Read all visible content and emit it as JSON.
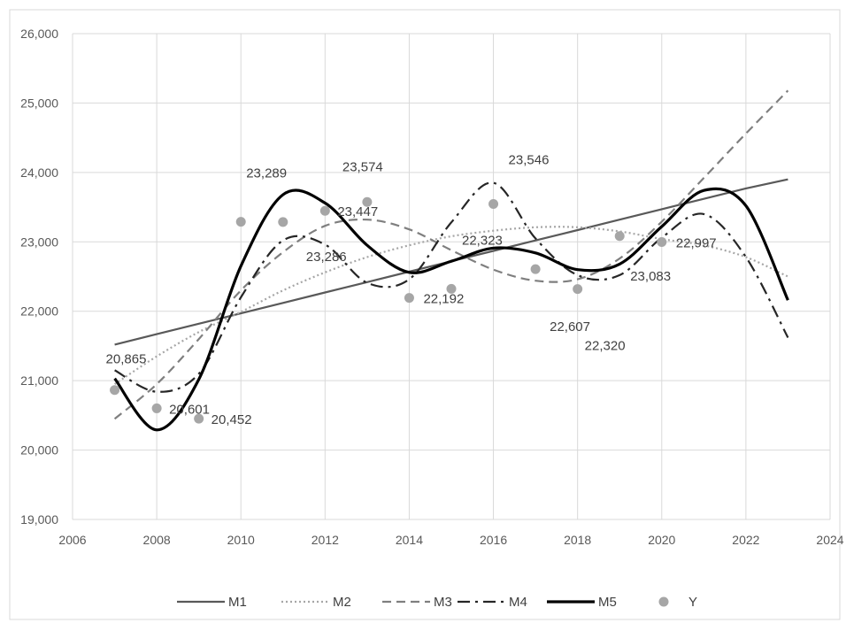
{
  "chart_data": {
    "type": "line",
    "title": "",
    "xlabel": "",
    "ylabel": "",
    "xlim": [
      2006,
      2024
    ],
    "ylim": [
      19000,
      26000
    ],
    "x_ticks": [
      "2006",
      "2008",
      "2010",
      "2012",
      "2014",
      "2016",
      "2018",
      "2020",
      "2022",
      "2024"
    ],
    "y_ticks": [
      "19,000",
      "20,000",
      "21,000",
      "22,000",
      "23,000",
      "24,000",
      "25,000",
      "26,000"
    ],
    "grid": true,
    "legend_position": "bottom",
    "x": [
      2007,
      2008,
      2009,
      2010,
      2011,
      2012,
      2013,
      2014,
      2015,
      2016,
      2017,
      2018,
      2019,
      2020,
      2021,
      2022,
      2023
    ],
    "series": [
      {
        "name": "M1",
        "style": "solid",
        "color": "#595959",
        "values": [
          21520,
          21670,
          21820,
          21970,
          22120,
          22270,
          22420,
          22570,
          22720,
          22870,
          23020,
          23170,
          23320,
          23470,
          23620,
          23770,
          23900
        ]
      },
      {
        "name": "M2",
        "style": "dotted",
        "color": "#a6a6a6",
        "values": [
          20950,
          21350,
          21700,
          21990,
          22300,
          22560,
          22780,
          22950,
          23080,
          23160,
          23210,
          23210,
          23150,
          23040,
          22950,
          22780,
          22500
        ]
      },
      {
        "name": "M3",
        "style": "dashed",
        "color": "#7f7f7f",
        "values": [
          20450,
          20950,
          21600,
          22300,
          22850,
          23230,
          23320,
          23180,
          22880,
          22600,
          22440,
          22460,
          22760,
          23290,
          23920,
          24560,
          25180
        ]
      },
      {
        "name": "M4",
        "style": "dashdot",
        "color": "#262626",
        "values": [
          21150,
          20840,
          21100,
          22200,
          23020,
          22960,
          22410,
          22460,
          23280,
          23850,
          23050,
          22520,
          22520,
          23060,
          23400,
          22780,
          21620
        ]
      },
      {
        "name": "M5",
        "style": "solid-thick",
        "color": "#000000",
        "values": [
          21030,
          20290,
          21020,
          22650,
          23680,
          23560,
          22950,
          22560,
          22720,
          22910,
          22840,
          22600,
          22680,
          23220,
          23740,
          23520,
          22160
        ]
      },
      {
        "name": "Y",
        "style": "markers",
        "color": "#a6a6a6",
        "values": [
          20865,
          20601,
          20452,
          23289,
          23286,
          23447,
          23574,
          22192,
          22323,
          23546,
          22607,
          22320,
          23083,
          22997
        ],
        "x": [
          2007,
          2008,
          2009,
          2010,
          2011,
          2012,
          2013,
          2014,
          2015,
          2016,
          2017,
          2018,
          2019,
          2020
        ]
      }
    ],
    "data_labels": [
      {
        "text": "20,865",
        "x": 2007,
        "y": 20865,
        "pos": "above"
      },
      {
        "text": "20,601",
        "x": 2008,
        "y": 20601,
        "pos": "right"
      },
      {
        "text": "20,452",
        "x": 2009,
        "y": 20452,
        "pos": "right"
      },
      {
        "text": "23,289",
        "x": 2010,
        "y": 23289,
        "pos": "above-right"
      },
      {
        "text": "23,286",
        "x": 2011,
        "y": 23286,
        "pos": "below"
      },
      {
        "text": "23,447",
        "x": 2012,
        "y": 23447,
        "pos": "right"
      },
      {
        "text": "23,574",
        "x": 2013,
        "y": 23574,
        "pos": "above"
      },
      {
        "text": "22,192",
        "x": 2014,
        "y": 22192,
        "pos": "right"
      },
      {
        "text": "22,323",
        "x": 2015,
        "y": 22323,
        "pos": "above-right"
      },
      {
        "text": "23,546",
        "x": 2016,
        "y": 23546,
        "pos": "above-right"
      },
      {
        "text": "22,607",
        "x": 2017,
        "y": 22607,
        "pos": "below"
      },
      {
        "text": "22,320",
        "x": 2018,
        "y": 22320,
        "pos": "below-right"
      },
      {
        "text": "23,083",
        "x": 2019,
        "y": 23083,
        "pos": "below-right"
      },
      {
        "text": "22,997",
        "x": 2020,
        "y": 22997,
        "pos": "right"
      }
    ]
  }
}
